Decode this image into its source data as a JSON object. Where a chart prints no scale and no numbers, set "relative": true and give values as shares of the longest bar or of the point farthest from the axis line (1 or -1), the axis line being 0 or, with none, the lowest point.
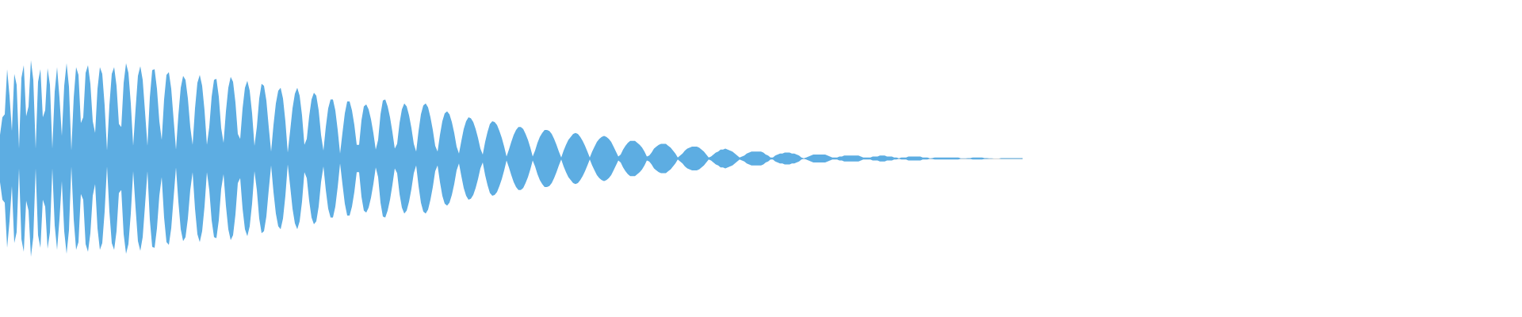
{
  "chart_data": {
    "type": "area",
    "relative": true,
    "categories": [
      null,
      null,
      null,
      null,
      null,
      null,
      null,
      null,
      null,
      null,
      null,
      null,
      null,
      null,
      null,
      null,
      null,
      null,
      null,
      null,
      null,
      null,
      null,
      null,
      null,
      null,
      null,
      null,
      null,
      null,
      null,
      null,
      null,
      null,
      null,
      null,
      null,
      null,
      null,
      null,
      null,
      null,
      null,
      null,
      null,
      null,
      null,
      null,
      null,
      null,
      null,
      null,
      null,
      null,
      null,
      null,
      null,
      null,
      null,
      null,
      null,
      null,
      null,
      null,
      null,
      null,
      null,
      null,
      null,
      null,
      null,
      null,
      null,
      null,
      null,
      null,
      null,
      null,
      null,
      null,
      null,
      null,
      null,
      null,
      null,
      null,
      null,
      null,
      null,
      null,
      null,
      null,
      null,
      null,
      null,
      null,
      null,
      null,
      null,
      null,
      null,
      null,
      null,
      null,
      null,
      null,
      null,
      null,
      null,
      null,
      null,
      null,
      null,
      null,
      null,
      null,
      null,
      null,
      null,
      null,
      null,
      null,
      null,
      null,
      null,
      null,
      null,
      null,
      null,
      null,
      null,
      null,
      null,
      null,
      null,
      null,
      null,
      null,
      null,
      null,
      null,
      null,
      null,
      null,
      null,
      null,
      null,
      null,
      null,
      null,
      null,
      null,
      null,
      null,
      null,
      null,
      null,
      null,
      null,
      null,
      null,
      null,
      null,
      null,
      null,
      null,
      null,
      null,
      null,
      null,
      null,
      null,
      null,
      null,
      null,
      null,
      null,
      null,
      null,
      null,
      null,
      null,
      null,
      null,
      null,
      null,
      null,
      null,
      null,
      null,
      null,
      null,
      null,
      null,
      null,
      null,
      null,
      null,
      null,
      null,
      null,
      null,
      null,
      null,
      null,
      null,
      null,
      null,
      null,
      null,
      null,
      null,
      null,
      null,
      null,
      null,
      null,
      null,
      null,
      null,
      null,
      null,
      null,
      null,
      null,
      null,
      null,
      null,
      null,
      null,
      null,
      null,
      null,
      null,
      null,
      null,
      null,
      null,
      null,
      null,
      null,
      null,
      null,
      null,
      null,
      null,
      null,
      null,
      null,
      null,
      null,
      null,
      null,
      null,
      null,
      null,
      null,
      null,
      null,
      null,
      null,
      null,
      null,
      null,
      null,
      null,
      null,
      null,
      null,
      null,
      null,
      null,
      null,
      null,
      null,
      null,
      null,
      null,
      null,
      null,
      null,
      null,
      null,
      null,
      null,
      null,
      null,
      null,
      null,
      null,
      null,
      null,
      null,
      null,
      null,
      null,
      null,
      null,
      null,
      null,
      null,
      null,
      null,
      null,
      null,
      null,
      null,
      null,
      null,
      null,
      null,
      null,
      null,
      null,
      null,
      null,
      null,
      null,
      null,
      null,
      null,
      null,
      null,
      null,
      null,
      null,
      null,
      null,
      null,
      null,
      null,
      null,
      null,
      null,
      null,
      null,
      null,
      null,
      null,
      null,
      null,
      null,
      null,
      null,
      null,
      null,
      null,
      null,
      null,
      null,
      null,
      null,
      null,
      null,
      null,
      null,
      null,
      null,
      null,
      null,
      null,
      null,
      null,
      null,
      null,
      null,
      null,
      null,
      null,
      null,
      null,
      null,
      null,
      null,
      null,
      null,
      null,
      null,
      null,
      null,
      null,
      null,
      null,
      null,
      null,
      null,
      null,
      null,
      null,
      null,
      null,
      null,
      null,
      null,
      null,
      null,
      null,
      null,
      null,
      null,
      null,
      null,
      null,
      null,
      null,
      null,
      null,
      null,
      null,
      null,
      null,
      null,
      null,
      null,
      null,
      null,
      null,
      null,
      null,
      null,
      null,
      null,
      null,
      null,
      null,
      null,
      null,
      null,
      null,
      null,
      null
    ],
    "series": [
      {
        "color": "#5dade2",
        "values": [
          0.24,
          0.42,
          0.45,
          0.91,
          0.64,
          0.28,
          0.86,
          0.75,
          0.1,
          0.82,
          0.95,
          0.43,
          0.53,
          1,
          0.8,
          0.1,
          0.78,
          0.91,
          0.42,
          0.49,
          0.92,
          0.75,
          0.1,
          0.68,
          0.93,
          0.62,
          0.23,
          0.74,
          0.97,
          0.73,
          0.08,
          0.62,
          0.93,
          0.85,
          0.36,
          0.42,
          0.87,
          0.95,
          0.76,
          0.38,
          0.26,
          0.71,
          0.93,
          0.86,
          0.54,
          0.08,
          0.54,
          0.86,
          0.93,
          0.74,
          0.35,
          0.32,
          0.77,
          0.97,
          0.87,
          0.56,
          0.13,
          0.5,
          0.84,
          0.94,
          0.8,
          0.47,
          0.13,
          0.62,
          0.9,
          0.91,
          0.71,
          0.38,
          0.19,
          0.6,
          0.85,
          0.88,
          0.71,
          0.4,
          0.09,
          0.44,
          0.72,
          0.84,
          0.8,
          0.61,
          0.32,
          0.14,
          0.51,
          0.77,
          0.85,
          0.74,
          0.49,
          0.14,
          0.32,
          0.63,
          0.8,
          0.81,
          0.63,
          0.31,
          0.16,
          0.48,
          0.72,
          0.83,
          0.78,
          0.57,
          0.25,
          0.2,
          0.51,
          0.72,
          0.79,
          0.69,
          0.46,
          0.13,
          0.32,
          0.61,
          0.76,
          0.74,
          0.59,
          0.32,
          0.07,
          0.34,
          0.56,
          0.69,
          0.72,
          0.61,
          0.38,
          0.06,
          0.28,
          0.51,
          0.66,
          0.72,
          0.64,
          0.44,
          0.14,
          0.2,
          0.43,
          0.6,
          0.67,
          0.64,
          0.49,
          0.24,
          0.08,
          0.32,
          0.51,
          0.6,
          0.6,
          0.49,
          0.29,
          0.05,
          0.26,
          0.46,
          0.58,
          0.58,
          0.49,
          0.34,
          0.14,
          0.14,
          0.39,
          0.53,
          0.55,
          0.5,
          0.4,
          0.26,
          0.09,
          0.19,
          0.45,
          0.59,
          0.6,
          0.53,
          0.42,
          0.27,
          0.1,
          0.15,
          0.36,
          0.5,
          0.56,
          0.53,
          0.44,
          0.31,
          0.15,
          0.07,
          0.28,
          0.45,
          0.54,
          0.56,
          0.52,
          0.42,
          0.29,
          0.13,
          0.07,
          0.24,
          0.38,
          0.46,
          0.48,
          0.45,
          0.37,
          0.26,
          0.12,
          0.05,
          0.18,
          0.3,
          0.38,
          0.42,
          0.41,
          0.37,
          0.3,
          0.21,
          0.1,
          0.04,
          0.17,
          0.27,
          0.35,
          0.38,
          0.37,
          0.34,
          0.28,
          0.21,
          0.12,
          0.02,
          0.09,
          0.17,
          0.24,
          0.29,
          0.32,
          0.32,
          0.3,
          0.25,
          0.19,
          0.11,
          0.02,
          0.08,
          0.16,
          0.22,
          0.26,
          0.29,
          0.29,
          0.28,
          0.25,
          0.2,
          0.14,
          0.07,
          0.01,
          0.08,
          0.14,
          0.19,
          0.22,
          0.25,
          0.26,
          0.25,
          0.22,
          0.18,
          0.13,
          0.07,
          0.01,
          0.07,
          0.12,
          0.17,
          0.2,
          0.22,
          0.23,
          0.22,
          0.2,
          0.17,
          0.12,
          0.07,
          0.02,
          0.04,
          0.09,
          0.13,
          0.16,
          0.18,
          0.18,
          0.18,
          0.16,
          0.14,
          0.11,
          0.07,
          0.02,
          0.03,
          0.06,
          0.1,
          0.12,
          0.14,
          0.15,
          0.15,
          0.15,
          0.13,
          0.11,
          0.08,
          0.05,
          0.01,
          0.03,
          0.05,
          0.08,
          0.1,
          0.11,
          0.12,
          0.12,
          0.12,
          0.11,
          0.09,
          0.07,
          0.04,
          0.01,
          0.02,
          0.04,
          0.06,
          0.07,
          0.09,
          0.09,
          0.1,
          0.09,
          0.08,
          0.07,
          0.05,
          0.03,
          0.01,
          0.02,
          0.03,
          0.05,
          0.06,
          0.07,
          0.07,
          0.07,
          0.07,
          0.07,
          0.06,
          0.04,
          0.03,
          0.01,
          0.01,
          0.03,
          0.04,
          0.05,
          0.05,
          0.06,
          0.06,
          0.06,
          0.05,
          0.05,
          0.04,
          0.03,
          0.01,
          0.002,
          0.01,
          0.02,
          0.03,
          0.04,
          0.04,
          0.04,
          0.04,
          0.04,
          0.04,
          0.03,
          0.02,
          0.01,
          0.01,
          0.01,
          0.02,
          0.02,
          0.03,
          0.03,
          0.03,
          0.03,
          0.03,
          0.03,
          0.03,
          0.02,
          0.01,
          0.01,
          0.01,
          0.01,
          0.02,
          0.02,
          0.02,
          0.03,
          0.03,
          0.03,
          0.02,
          0.02,
          0.02,
          0.01,
          0.01,
          0.003,
          0.01,
          0.01,
          0.01,
          0.02,
          0.02,
          0.02,
          0.02,
          0.02,
          0.02,
          0.01,
          0.01,
          0.01,
          0.003,
          0.005,
          0.01,
          0.01,
          0.01,
          0.01,
          0.01,
          0.01,
          0.01,
          0.01,
          0.01,
          0.01,
          0.01,
          0.003,
          0.003,
          0.003,
          0.004,
          0.005,
          0.01,
          0.01,
          0.01,
          0.01,
          0.01,
          0.005,
          0.004,
          0.003,
          0.002,
          0.001,
          0,
          0,
          0.004,
          0.004,
          0.004,
          0.004,
          0.004,
          0.004,
          0.004,
          0.004,
          0.004,
          0.004
        ]
      },
      {
        "color": "#5dade2",
        "values": [
          -0.24,
          -0.42,
          -0.45,
          -0.91,
          -0.64,
          -0.28,
          -0.86,
          -0.75,
          -0.1,
          -0.82,
          -0.95,
          -0.43,
          -0.53,
          -1,
          -0.8,
          -0.1,
          -0.78,
          -0.91,
          -0.42,
          -0.49,
          -0.92,
          -0.75,
          -0.1,
          -0.68,
          -0.93,
          -0.62,
          -0.23,
          -0.74,
          -0.97,
          -0.73,
          -0.08,
          -0.62,
          -0.93,
          -0.85,
          -0.36,
          -0.42,
          -0.87,
          -0.95,
          -0.76,
          -0.38,
          -0.26,
          -0.71,
          -0.93,
          -0.86,
          -0.54,
          -0.08,
          -0.54,
          -0.86,
          -0.93,
          -0.74,
          -0.35,
          -0.32,
          -0.77,
          -0.97,
          -0.87,
          -0.56,
          -0.13,
          -0.5,
          -0.84,
          -0.94,
          -0.8,
          -0.47,
          -0.13,
          -0.62,
          -0.9,
          -0.91,
          -0.71,
          -0.38,
          -0.19,
          -0.6,
          -0.85,
          -0.88,
          -0.71,
          -0.4,
          -0.09,
          -0.44,
          -0.72,
          -0.84,
          -0.8,
          -0.61,
          -0.32,
          -0.14,
          -0.51,
          -0.77,
          -0.85,
          -0.74,
          -0.49,
          -0.14,
          -0.32,
          -0.63,
          -0.8,
          -0.81,
          -0.63,
          -0.31,
          -0.16,
          -0.48,
          -0.72,
          -0.83,
          -0.78,
          -0.57,
          -0.25,
          -0.2,
          -0.51,
          -0.72,
          -0.79,
          -0.69,
          -0.46,
          -0.13,
          -0.32,
          -0.61,
          -0.76,
          -0.74,
          -0.59,
          -0.32,
          -0.07,
          -0.34,
          -0.56,
          -0.69,
          -0.72,
          -0.61,
          -0.38,
          -0.06,
          -0.28,
          -0.51,
          -0.66,
          -0.72,
          -0.64,
          -0.44,
          -0.14,
          -0.2,
          -0.43,
          -0.6,
          -0.67,
          -0.64,
          -0.49,
          -0.24,
          -0.08,
          -0.32,
          -0.51,
          -0.6,
          -0.6,
          -0.49,
          -0.29,
          -0.05,
          -0.26,
          -0.46,
          -0.58,
          -0.58,
          -0.49,
          -0.34,
          -0.14,
          -0.14,
          -0.39,
          -0.53,
          -0.55,
          -0.5,
          -0.4,
          -0.26,
          -0.09,
          -0.19,
          -0.45,
          -0.59,
          -0.6,
          -0.53,
          -0.42,
          -0.27,
          -0.1,
          -0.15,
          -0.36,
          -0.5,
          -0.56,
          -0.53,
          -0.44,
          -0.31,
          -0.15,
          -0.07,
          -0.28,
          -0.45,
          -0.54,
          -0.56,
          -0.52,
          -0.42,
          -0.29,
          -0.13,
          -0.07,
          -0.24,
          -0.38,
          -0.46,
          -0.48,
          -0.45,
          -0.37,
          -0.26,
          -0.12,
          -0.05,
          -0.18,
          -0.3,
          -0.38,
          -0.42,
          -0.41,
          -0.37,
          -0.3,
          -0.21,
          -0.1,
          -0.04,
          -0.17,
          -0.27,
          -0.35,
          -0.38,
          -0.37,
          -0.34,
          -0.28,
          -0.21,
          -0.12,
          -0.02,
          -0.09,
          -0.17,
          -0.24,
          -0.29,
          -0.32,
          -0.32,
          -0.3,
          -0.25,
          -0.19,
          -0.11,
          -0.02,
          -0.08,
          -0.16,
          -0.22,
          -0.26,
          -0.29,
          -0.29,
          -0.28,
          -0.25,
          -0.2,
          -0.14,
          -0.07,
          -0.01,
          -0.08,
          -0.14,
          -0.19,
          -0.22,
          -0.25,
          -0.26,
          -0.25,
          -0.22,
          -0.18,
          -0.13,
          -0.07,
          -0.01,
          -0.07,
          -0.12,
          -0.17,
          -0.2,
          -0.22,
          -0.23,
          -0.22,
          -0.2,
          -0.17,
          -0.12,
          -0.07,
          -0.02,
          -0.04,
          -0.09,
          -0.13,
          -0.16,
          -0.18,
          -0.18,
          -0.18,
          -0.16,
          -0.14,
          -0.11,
          -0.07,
          -0.02,
          -0.03,
          -0.06,
          -0.1,
          -0.12,
          -0.14,
          -0.15,
          -0.15,
          -0.15,
          -0.13,
          -0.11,
          -0.08,
          -0.05,
          -0.01,
          -0.03,
          -0.05,
          -0.08,
          -0.1,
          -0.11,
          -0.12,
          -0.12,
          -0.12,
          -0.11,
          -0.09,
          -0.07,
          -0.04,
          -0.01,
          -0.02,
          -0.04,
          -0.06,
          -0.07,
          -0.09,
          -0.09,
          -0.1,
          -0.09,
          -0.08,
          -0.07,
          -0.05,
          -0.03,
          -0.01,
          -0.02,
          -0.03,
          -0.05,
          -0.06,
          -0.07,
          -0.07,
          -0.07,
          -0.07,
          -0.07,
          -0.06,
          -0.04,
          -0.03,
          -0.01,
          -0.01,
          -0.03,
          -0.04,
          -0.05,
          -0.05,
          -0.06,
          -0.06,
          -0.06,
          -0.05,
          -0.05,
          -0.04,
          -0.03,
          -0.01,
          -0.002,
          -0.01,
          -0.02,
          -0.03,
          -0.04,
          -0.04,
          -0.04,
          -0.04,
          -0.04,
          -0.04,
          -0.03,
          -0.02,
          -0.01,
          -0.01,
          -0.01,
          -0.02,
          -0.02,
          -0.03,
          -0.03,
          -0.03,
          -0.03,
          -0.03,
          -0.03,
          -0.03,
          -0.02,
          -0.01,
          -0.01,
          -0.01,
          -0.01,
          -0.02,
          -0.02,
          -0.02,
          -0.03,
          -0.03,
          -0.03,
          -0.02,
          -0.02,
          -0.02,
          -0.01,
          -0.01,
          -0.003,
          -0.01,
          -0.01,
          -0.01,
          -0.02,
          -0.02,
          -0.02,
          -0.02,
          -0.02,
          -0.02,
          -0.01,
          -0.01,
          -0.01,
          -0.003,
          -0.005,
          -0.01,
          -0.01,
          -0.01,
          -0.01,
          -0.01,
          -0.01,
          -0.01,
          -0.01,
          -0.01,
          -0.01,
          -0.01,
          -0.003,
          -0.003,
          -0.003,
          -0.004,
          -0.005,
          -0.01,
          -0.01,
          -0.01,
          -0.01,
          -0.01,
          -0.005,
          -0.004,
          -0.003,
          -0.002,
          -0.001,
          0,
          0,
          -0.004,
          -0.004,
          -0.004,
          -0.004,
          -0.004,
          -0.004,
          -0.004,
          -0.004,
          -0.004,
          -0.004
        ]
      }
    ]
  }
}
